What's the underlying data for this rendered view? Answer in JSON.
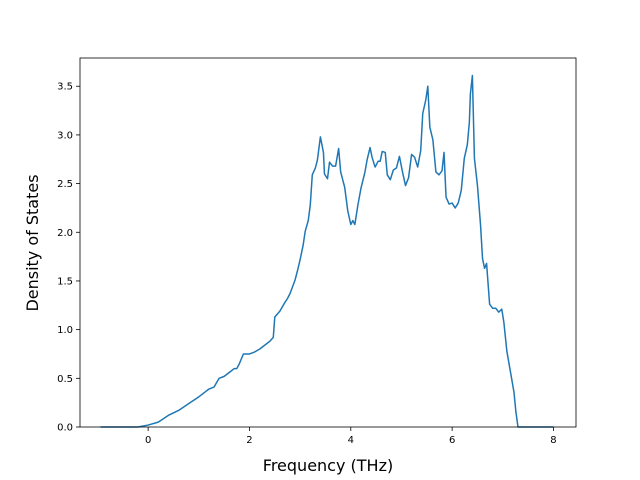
{
  "chart_data": {
    "type": "line",
    "xlabel": "Frequency (THz)",
    "ylabel": "Density of States",
    "x": [
      -0.94,
      -0.2,
      0,
      0.2,
      0.4,
      0.6,
      0.8,
      1.0,
      1.1,
      1.2,
      1.3,
      1.4,
      1.5,
      1.6,
      1.7,
      1.75,
      1.8,
      1.88,
      2.0,
      2.1,
      2.2,
      2.3,
      2.4,
      2.47,
      2.5,
      2.6,
      2.7,
      2.75,
      2.8,
      2.9,
      2.95,
      3.0,
      3.06,
      3.1,
      3.16,
      3.2,
      3.24,
      3.3,
      3.34,
      3.4,
      3.46,
      3.48,
      3.54,
      3.58,
      3.64,
      3.7,
      3.76,
      3.8,
      3.88,
      3.94,
      4.0,
      4.04,
      4.08,
      4.14,
      4.2,
      4.28,
      4.32,
      4.38,
      4.42,
      4.48,
      4.54,
      4.58,
      4.62,
      4.68,
      4.72,
      4.78,
      4.84,
      4.9,
      4.96,
      5.02,
      5.08,
      5.14,
      5.2,
      5.26,
      5.32,
      5.38,
      5.42,
      5.48,
      5.52,
      5.56,
      5.62,
      5.68,
      5.74,
      5.8,
      5.84,
      5.88,
      5.94,
      6.0,
      6.06,
      6.12,
      6.18,
      6.24,
      6.3,
      6.34,
      6.36,
      6.4,
      6.44,
      6.5,
      6.56,
      6.6,
      6.64,
      6.68,
      6.74,
      6.8,
      6.86,
      6.92,
      6.98,
      7.02,
      7.08,
      7.16,
      7.22,
      7.26,
      7.3,
      8.0
    ],
    "series": [
      {
        "name": "DOS",
        "color": "#1f77b4",
        "values": [
          0,
          0,
          0.02,
          0.05,
          0.12,
          0.17,
          0.24,
          0.31,
          0.35,
          0.39,
          0.41,
          0.5,
          0.52,
          0.56,
          0.6,
          0.6,
          0.65,
          0.75,
          0.75,
          0.77,
          0.8,
          0.84,
          0.88,
          0.92,
          1.13,
          1.19,
          1.28,
          1.32,
          1.37,
          1.51,
          1.61,
          1.72,
          1.87,
          2.01,
          2.12,
          2.28,
          2.59,
          2.66,
          2.74,
          2.98,
          2.82,
          2.6,
          2.55,
          2.72,
          2.68,
          2.68,
          2.86,
          2.62,
          2.46,
          2.22,
          2.08,
          2.12,
          2.08,
          2.28,
          2.45,
          2.62,
          2.74,
          2.87,
          2.77,
          2.67,
          2.73,
          2.73,
          2.83,
          2.82,
          2.59,
          2.54,
          2.64,
          2.66,
          2.78,
          2.62,
          2.48,
          2.56,
          2.8,
          2.77,
          2.67,
          2.84,
          3.22,
          3.36,
          3.5,
          3.08,
          2.95,
          2.62,
          2.59,
          2.63,
          2.82,
          2.36,
          2.29,
          2.3,
          2.25,
          2.3,
          2.43,
          2.76,
          2.9,
          3.13,
          3.42,
          3.61,
          2.76,
          2.48,
          2.08,
          1.73,
          1.63,
          1.68,
          1.26,
          1.22,
          1.22,
          1.18,
          1.21,
          1.08,
          0.78,
          0.54,
          0.36,
          0.15,
          0,
          0
        ]
      }
    ],
    "xlim": [
      -1.345,
      8.445
    ],
    "xticks": [
      0,
      2,
      4,
      6,
      8
    ],
    "ylim": [
      0,
      3.79
    ],
    "yticks": [
      {
        "value": 0,
        "label": "0.0"
      },
      0.5,
      {
        "value": 1,
        "label": "1.0"
      },
      1.5,
      {
        "value": 2,
        "label": "2.0"
      },
      2.5,
      {
        "value": 3,
        "label": "3.0"
      },
      3.5
    ]
  }
}
